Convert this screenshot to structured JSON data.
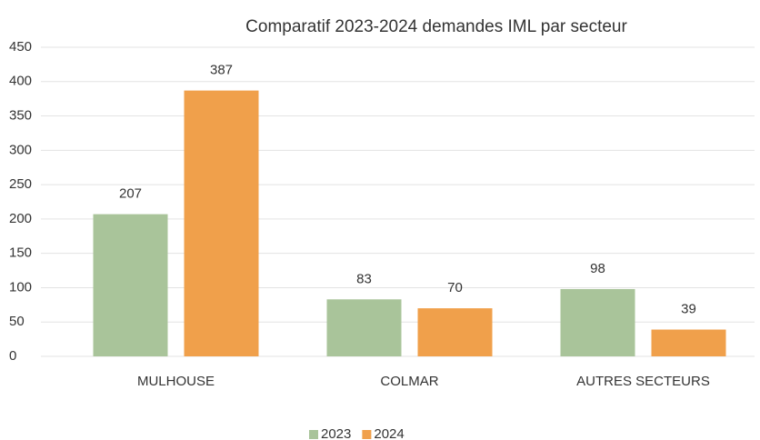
{
  "chart_data": {
    "type": "bar",
    "title": "Comparatif 2023-2024 demandes IML par secteur",
    "categories": [
      "MULHOUSE",
      "COLMAR",
      "AUTRES SECTEURS"
    ],
    "series": [
      {
        "name": "2023",
        "color": "#a9c49a",
        "values": [
          207,
          83,
          98
        ]
      },
      {
        "name": "2024",
        "color": "#f0a04b",
        "values": [
          387,
          70,
          39
        ]
      }
    ],
    "ylim": [
      0,
      450
    ],
    "yticks": [
      0,
      50,
      100,
      150,
      200,
      250,
      300,
      350,
      400,
      450
    ],
    "grid": true,
    "legend": "bottom"
  }
}
